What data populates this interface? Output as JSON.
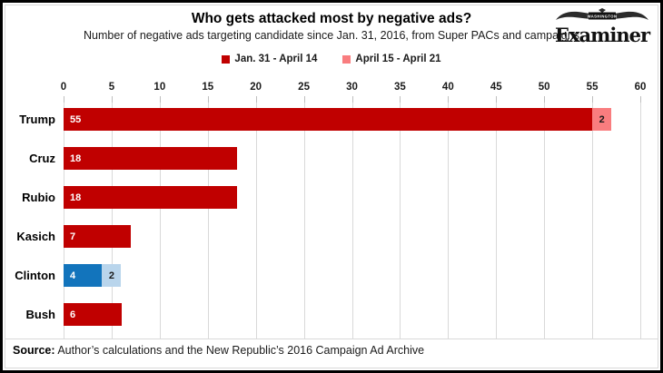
{
  "header": {
    "title": "Who gets attacked most by negative ads?",
    "subtitle": "Number of negative ads targeting candidate since Jan. 31, 2016, from Super PACs and campaigns"
  },
  "logo": {
    "region": "WASHINGTON",
    "name": "Examiner"
  },
  "source": {
    "label": "Source:",
    "text": " Author’s calculations and the New Republic’s 2016 Campaign Ad Archive"
  },
  "colors": {
    "dark_red": "#C00000",
    "salmon": "#F97D7F",
    "blue": "#1274BC",
    "light_blue": "#B9D5EC",
    "gridline": "#D9D9D9",
    "tick": "#BFBFBF"
  },
  "chart_data": {
    "type": "bar",
    "orientation": "horizontal",
    "title": "Who gets attacked most by negative ads?",
    "subtitle": "Number of negative ads targeting candidate since Jan. 31, 2016, from Super PACs and campaigns",
    "categories": [
      "Trump",
      "Cruz",
      "Rubio",
      "Kasich",
      "Clinton",
      "Bush"
    ],
    "series": [
      {
        "name": "Jan. 31 - April 14",
        "color": "#C00000",
        "values": [
          55,
          18,
          18,
          7,
          4,
          6
        ]
      },
      {
        "name": "April 15 - April 21",
        "color": "#F97D7F",
        "values": [
          2,
          0,
          0,
          0,
          2,
          0
        ]
      }
    ],
    "xlim": [
      0,
      60
    ],
    "ticks": [
      0,
      5,
      10,
      15,
      20,
      25,
      30,
      35,
      40,
      45,
      50,
      55,
      60
    ],
    "gridlines": true,
    "legend_position": "top",
    "axis_position": "top",
    "rows": [
      {
        "label": "Trump",
        "segments": [
          {
            "value": 55,
            "color": "#C00000",
            "text_color": "#FFFFFF"
          },
          {
            "value": 2,
            "color": "#F97D7F",
            "text_color": "#1A1A1A"
          }
        ]
      },
      {
        "label": "Cruz",
        "segments": [
          {
            "value": 18,
            "color": "#C00000",
            "text_color": "#FFFFFF"
          }
        ]
      },
      {
        "label": "Rubio",
        "segments": [
          {
            "value": 18,
            "color": "#C00000",
            "text_color": "#FFFFFF"
          }
        ]
      },
      {
        "label": "Kasich",
        "segments": [
          {
            "value": 7,
            "color": "#C00000",
            "text_color": "#FFFFFF"
          }
        ]
      },
      {
        "label": "Clinton",
        "segments": [
          {
            "value": 4,
            "color": "#1274BC",
            "text_color": "#FFFFFF"
          },
          {
            "value": 2,
            "color": "#B9D5EC",
            "text_color": "#1A1A1A"
          }
        ]
      },
      {
        "label": "Bush",
        "segments": [
          {
            "value": 6,
            "color": "#C00000",
            "text_color": "#FFFFFF"
          }
        ]
      }
    ]
  }
}
